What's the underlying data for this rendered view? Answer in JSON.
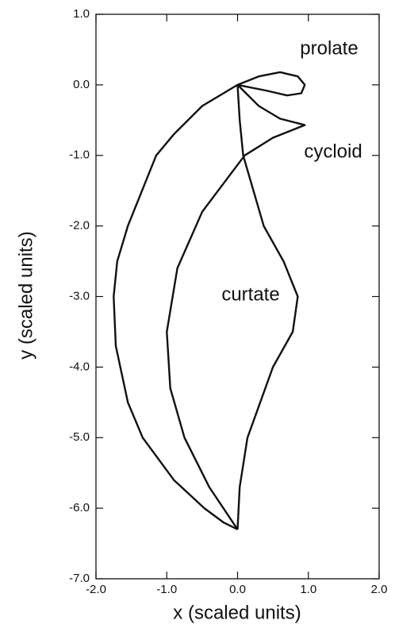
{
  "chart_data": {
    "type": "line",
    "xlabel": "x  (scaled units)",
    "ylabel": "y  (scaled units)",
    "xlim": [
      -2,
      2
    ],
    "ylim": [
      -7,
      1
    ],
    "xticks": [
      {
        "value": -2,
        "label": "-2.0"
      },
      {
        "value": -1,
        "label": "-1.0"
      },
      {
        "value": 0,
        "label": "0.0"
      },
      {
        "value": 1,
        "label": "1.0"
      },
      {
        "value": 2,
        "label": "2.0"
      }
    ],
    "yticks": [
      {
        "value": 1,
        "label": "1.0"
      },
      {
        "value": 0,
        "label": "0.0"
      },
      {
        "value": -1,
        "label": "-1.0"
      },
      {
        "value": -2,
        "label": "-2.0"
      },
      {
        "value": -3,
        "label": "-3.0"
      },
      {
        "value": -4,
        "label": "-4.0"
      },
      {
        "value": -5,
        "label": "-5.0"
      },
      {
        "value": -6,
        "label": "-6.0"
      },
      {
        "value": -7,
        "label": "-7.0"
      }
    ],
    "annotations": [
      "prolate",
      "cycloid",
      "curtate"
    ],
    "series": [
      {
        "color": "#111111",
        "x": [
          0,
          0.3,
          0.6,
          0.85,
          0.95,
          0.9,
          0.7,
          0.4,
          0,
          -0.5,
          -0.9,
          -1.15,
          -1.55,
          -1.7,
          -1.75,
          -1.72,
          -1.55,
          -1.34,
          -0.9,
          -0.47,
          -0.2,
          0
        ],
        "values": [
          0,
          0.12,
          0.18,
          0.12,
          0.0,
          -0.12,
          -0.15,
          -0.08,
          0,
          -0.3,
          -0.7,
          -1.0,
          -2.0,
          -2.5,
          -3.0,
          -3.7,
          -4.5,
          -5.0,
          -5.6,
          -6.0,
          -6.2,
          -6.3
        ]
      },
      {
        "color": "#111111",
        "x": [
          0,
          0.3,
          0.6,
          0.95,
          0.5,
          0.1,
          -0.5,
          -0.85,
          -1.0,
          -0.95,
          -0.75,
          -0.4,
          0
        ],
        "values": [
          0,
          -0.3,
          -0.48,
          -0.57,
          -0.75,
          -1.0,
          -1.8,
          -2.6,
          -3.5,
          -4.3,
          -5.0,
          -5.7,
          -6.3
        ]
      },
      {
        "color": "#111111",
        "x": [
          0,
          0.03,
          0.08,
          0.37,
          0.65,
          0.85,
          0.78,
          0.5,
          0.14,
          0.03,
          0
        ],
        "values": [
          0,
          -0.5,
          -1.0,
          -2.0,
          -2.5,
          -3.0,
          -3.5,
          -4.0,
          -5.0,
          -5.7,
          -6.3
        ]
      }
    ]
  }
}
